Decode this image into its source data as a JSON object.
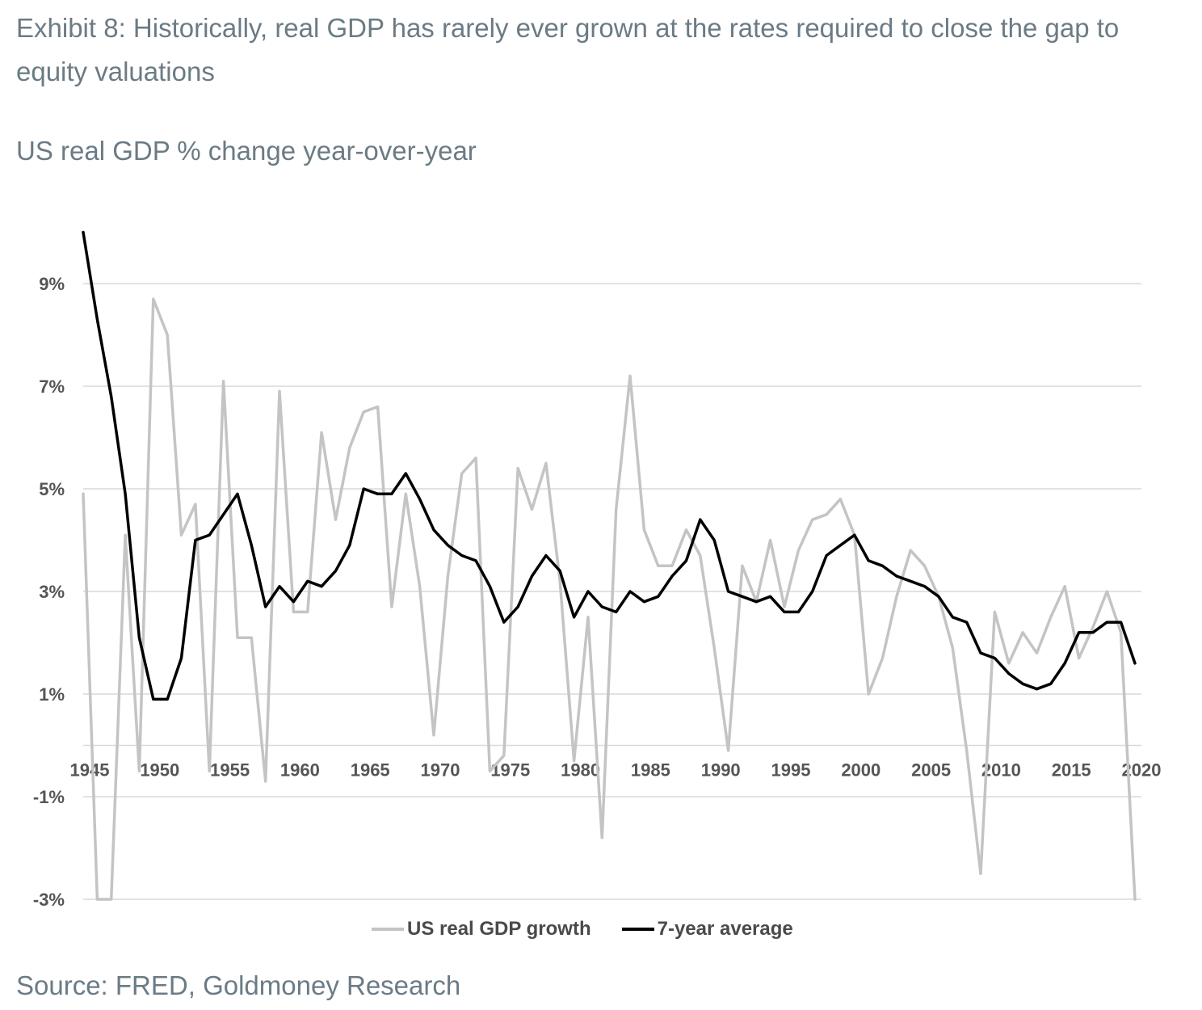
{
  "title": "Exhibit 8: Historically, real GDP has rarely ever grown at the rates required to close the gap to equity valuations",
  "subtitle": "US real GDP % change year-over-year",
  "source": "Source: FRED, Goldmoney Research",
  "colors": {
    "gdp": "#c4c4c4",
    "avg": "#000000",
    "grid": "#d9d9d9",
    "tick": "#555555"
  },
  "chart_data": {
    "type": "line",
    "ylim": [
      -3,
      10
    ],
    "xlim": [
      1945,
      2020
    ],
    "y_ticks": [
      9,
      7,
      5,
      3,
      1,
      -1,
      -3
    ],
    "y_tick_labels": [
      "9%",
      "7%",
      "5%",
      "3%",
      "1%",
      "-1%",
      "-3%"
    ],
    "x_ticks": [
      1945,
      1950,
      1955,
      1960,
      1965,
      1970,
      1975,
      1980,
      1985,
      1990,
      1995,
      2000,
      2005,
      2010,
      2015,
      2020
    ],
    "x_tick_labels": [
      "1945",
      "1950",
      "1955",
      "1960",
      "1965",
      "1970",
      "1975",
      "1980",
      "1985",
      "1990",
      "1995",
      "2000",
      "2005",
      "2010",
      "2015",
      "2020"
    ],
    "grid": true,
    "legend_position": "bottom",
    "series": [
      {
        "name": "US real GDP growth",
        "x": [
          1945,
          1946,
          1947,
          1948,
          1949,
          1950,
          1951,
          1952,
          1953,
          1954,
          1955,
          1956,
          1957,
          1958,
          1959,
          1960,
          1961,
          1962,
          1963,
          1964,
          1965,
          1966,
          1967,
          1968,
          1969,
          1970,
          1971,
          1972,
          1973,
          1974,
          1975,
          1976,
          1977,
          1978,
          1979,
          1980,
          1981,
          1982,
          1983,
          1984,
          1985,
          1986,
          1987,
          1988,
          1989,
          1990,
          1991,
          1992,
          1993,
          1994,
          1995,
          1996,
          1997,
          1998,
          1999,
          2000,
          2001,
          2002,
          2003,
          2004,
          2005,
          2006,
          2007,
          2008,
          2009,
          2010,
          2011,
          2012,
          2013,
          2014,
          2015,
          2016,
          2017,
          2018,
          2019,
          2020
        ],
        "values": [
          4.9,
          -3,
          -3,
          4.1,
          -0.5,
          8.7,
          8.0,
          4.1,
          4.7,
          -0.5,
          7.1,
          2.1,
          2.1,
          -0.7,
          6.9,
          2.6,
          2.6,
          6.1,
          4.4,
          5.8,
          6.5,
          6.6,
          2.7,
          4.9,
          3.1,
          0.2,
          3.3,
          5.3,
          5.6,
          -0.5,
          -0.2,
          5.4,
          4.6,
          5.5,
          3.2,
          -0.3,
          2.5,
          -1.8,
          4.6,
          7.2,
          4.2,
          3.5,
          3.5,
          4.2,
          3.7,
          1.9,
          -0.1,
          3.5,
          2.8,
          4.0,
          2.7,
          3.8,
          4.4,
          4.5,
          4.8,
          4.1,
          1.0,
          1.7,
          2.9,
          3.8,
          3.5,
          2.9,
          1.9,
          -0.1,
          -2.5,
          2.6,
          1.6,
          2.2,
          1.8,
          2.5,
          3.1,
          1.7,
          2.3,
          3.0,
          2.2,
          -3
        ]
      },
      {
        "name": "7-year average",
        "x": [
          1945,
          1946,
          1947,
          1948,
          1949,
          1950,
          1951,
          1952,
          1953,
          1954,
          1955,
          1956,
          1957,
          1958,
          1959,
          1960,
          1961,
          1962,
          1963,
          1964,
          1965,
          1966,
          1967,
          1968,
          1969,
          1970,
          1971,
          1972,
          1973,
          1974,
          1975,
          1976,
          1977,
          1978,
          1979,
          1980,
          1981,
          1982,
          1983,
          1984,
          1985,
          1986,
          1987,
          1988,
          1989,
          1990,
          1991,
          1992,
          1993,
          1994,
          1995,
          1996,
          1997,
          1998,
          1999,
          2000,
          2001,
          2002,
          2003,
          2004,
          2005,
          2006,
          2007,
          2008,
          2009,
          2010,
          2011,
          2012,
          2013,
          2014,
          2015,
          2016,
          2017,
          2018,
          2019,
          2020
        ],
        "values": [
          10.0,
          8.3,
          6.8,
          4.9,
          2.1,
          0.9,
          0.9,
          1.7,
          4.0,
          4.1,
          4.5,
          4.9,
          3.9,
          2.7,
          3.1,
          2.8,
          3.2,
          3.1,
          3.4,
          3.9,
          5.0,
          4.9,
          4.9,
          5.3,
          4.8,
          4.2,
          3.9,
          3.7,
          3.6,
          3.1,
          2.4,
          2.7,
          3.3,
          3.7,
          3.4,
          2.5,
          3.0,
          2.7,
          2.6,
          3.0,
          2.8,
          2.9,
          3.3,
          3.6,
          4.4,
          4.0,
          3.0,
          2.9,
          2.8,
          2.9,
          2.6,
          2.6,
          3.0,
          3.7,
          3.9,
          4.1,
          3.6,
          3.5,
          3.3,
          3.2,
          3.1,
          2.9,
          2.5,
          2.4,
          1.8,
          1.7,
          1.4,
          1.2,
          1.1,
          1.2,
          1.6,
          2.2,
          2.2,
          2.4,
          2.4,
          1.6
        ]
      }
    ]
  }
}
